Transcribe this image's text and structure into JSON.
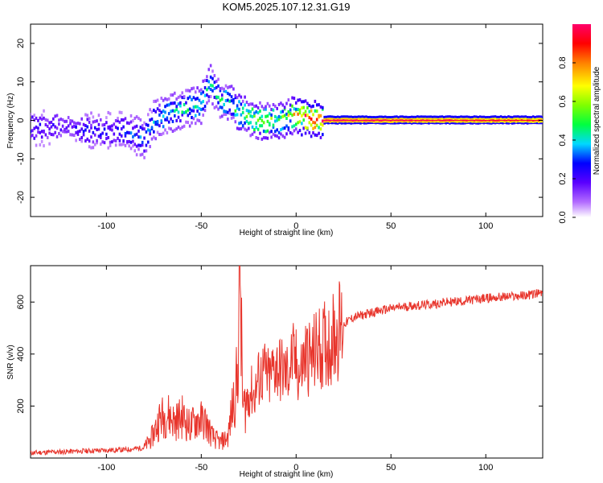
{
  "title": "KOM5.2025.107.12.31.G19",
  "colors": {
    "snr_line": "#e8352c",
    "axis": "#000000"
  },
  "chart_data": [
    {
      "type": "heatmap",
      "xlabel": "Height of straight line (km)",
      "ylabel": "Frequency (Hz)",
      "xlim": [
        -140,
        130
      ],
      "ylim": [
        -25,
        25
      ],
      "xticks": [
        -100,
        -50,
        0,
        50,
        100
      ],
      "xtick_labels": [
        "-100",
        "-50",
        "0",
        "50",
        "100"
      ],
      "yticks": [
        -20,
        -10,
        0,
        10,
        20
      ],
      "ytick_labels": [
        "-20",
        "-10",
        "0",
        "10",
        "20"
      ],
      "colorbar": {
        "label": "Normalized spectral amplitude",
        "range": [
          0,
          1
        ],
        "ticks": [
          0,
          0.2,
          0.4,
          0.6,
          0.8
        ],
        "tick_labels": [
          "0.0",
          "0.2",
          "0.4",
          "0.6",
          "0.8"
        ]
      },
      "ridge": {
        "x": [
          -138,
          -120,
          -110,
          -100,
          -90,
          -80,
          -75,
          -70,
          -60,
          -50,
          -45,
          -40,
          -35,
          -30,
          -25,
          -20,
          -15,
          -10,
          -5,
          0,
          5,
          10,
          15,
          130
        ],
        "freq": [
          -2,
          -1.5,
          -2.5,
          -3,
          -2.5,
          -5,
          0,
          1,
          3,
          4,
          10,
          5,
          5,
          2,
          1,
          0,
          0,
          -0.5,
          0.5,
          1.5,
          1,
          0,
          0,
          0
        ],
        "amplitude": [
          0.25,
          0.2,
          0.3,
          0.25,
          0.3,
          0.35,
          0.4,
          0.45,
          0.45,
          0.5,
          0.45,
          0.5,
          0.45,
          0.55,
          0.6,
          0.65,
          0.65,
          0.6,
          0.65,
          0.75,
          0.9,
          1.0,
          1.0,
          0.95
        ]
      }
    },
    {
      "type": "line",
      "xlabel": "Height of straight line (km)",
      "ylabel": "SNR (v/v)",
      "xlim": [
        -140,
        130
      ],
      "ylim": [
        0,
        740
      ],
      "xticks": [
        -100,
        -50,
        0,
        50,
        100
      ],
      "xtick_labels": [
        "-100",
        "-50",
        "0",
        "50",
        "100"
      ],
      "yticks": [
        200,
        400,
        600
      ],
      "ytick_labels": [
        "200",
        "400",
        "600"
      ],
      "series": [
        {
          "name": "SNR",
          "x": [
            -140,
            -120,
            -100,
            -90,
            -80,
            -76,
            -72,
            -68,
            -64,
            -60,
            -56,
            -52,
            -48,
            -44,
            -40,
            -36,
            -33,
            -31,
            -29.5,
            -29,
            -28,
            -26,
            -24,
            -22,
            -20,
            -17,
            -14,
            -11,
            -8,
            -5,
            -2,
            0,
            2,
            5,
            8,
            11,
            14,
            17,
            20,
            23,
            26,
            30,
            35,
            40,
            50,
            60,
            70,
            80,
            90,
            100,
            110,
            120,
            130
          ],
          "y": [
            20,
            25,
            30,
            32,
            40,
            80,
            150,
            170,
            140,
            160,
            120,
            150,
            140,
            80,
            60,
            80,
            220,
            300,
            740,
            480,
            180,
            220,
            260,
            240,
            300,
            330,
            300,
            360,
            340,
            320,
            380,
            360,
            320,
            400,
            380,
            420,
            430,
            440,
            470,
            500,
            520,
            540,
            550,
            560,
            575,
            585,
            590,
            600,
            605,
            615,
            620,
            625,
            635
          ]
        }
      ]
    }
  ]
}
